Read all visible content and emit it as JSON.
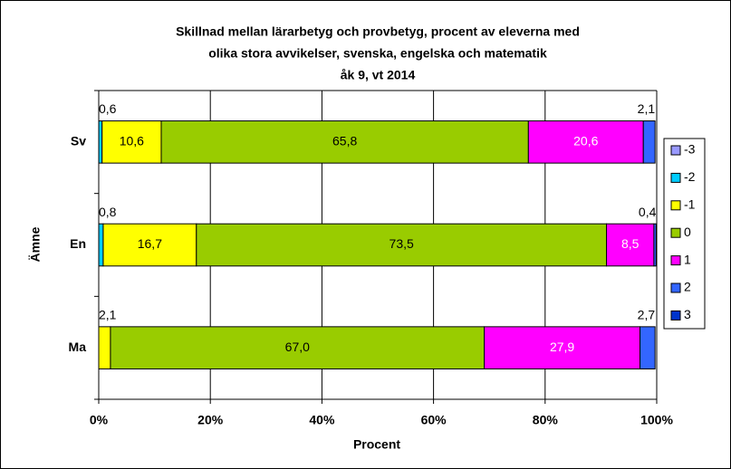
{
  "chart_data": {
    "type": "stacked_barh",
    "title": [
      "Skillnad mellan lärarbetyg och provbetyg, procent av eleverna med",
      "olika stora avvikelser, svenska, engelska och matematik",
      "åk 9, vt 2014"
    ],
    "xlabel": "Procent",
    "ylabel": "Ämne",
    "categories": [
      "Sv",
      "En",
      "Ma"
    ],
    "series": [
      {
        "name": "-3",
        "color": "#9999ff",
        "values": [
          null,
          null,
          null
        ],
        "value_labels": [
          null,
          null,
          null
        ]
      },
      {
        "name": "-2",
        "color": "#00ccff",
        "values": [
          0.6,
          0.8,
          null
        ],
        "value_labels": [
          "0,6",
          "0,8",
          null
        ]
      },
      {
        "name": "-1",
        "color": "#ffff00",
        "values": [
          10.6,
          16.7,
          2.1
        ],
        "value_labels": [
          "10,6",
          "16,7",
          "2,1"
        ]
      },
      {
        "name": "0",
        "color": "#99cc00",
        "values": [
          65.8,
          73.5,
          67.0
        ],
        "value_labels": [
          "65,8",
          "73,5",
          "67,0"
        ]
      },
      {
        "name": "1",
        "color": "#ff00ff",
        "values": [
          20.6,
          8.5,
          27.9
        ],
        "value_labels": [
          "20,6",
          "8,5",
          "27,9"
        ]
      },
      {
        "name": "2",
        "color": "#3366ff",
        "values": [
          2.1,
          0.4,
          2.7
        ],
        "value_labels": [
          "2,1",
          "0,4",
          "2,7"
        ]
      },
      {
        "name": "3",
        "color": "#0033cc",
        "values": [
          null,
          null,
          null
        ],
        "value_labels": [
          null,
          null,
          null
        ]
      }
    ],
    "xlim": [
      0,
      100
    ],
    "xticks": [
      {
        "value": 0,
        "label": "0%"
      },
      {
        "value": 20,
        "label": "20%"
      },
      {
        "value": 40,
        "label": "40%"
      },
      {
        "value": 60,
        "label": "60%"
      },
      {
        "value": 80,
        "label": "80%"
      },
      {
        "value": 100,
        "label": "100%"
      }
    ],
    "grid": true,
    "legend": "right"
  }
}
